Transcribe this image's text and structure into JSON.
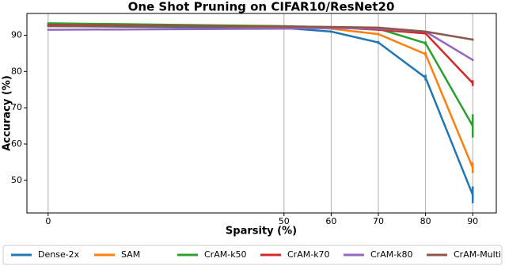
{
  "chart_data": {
    "type": "line",
    "title": "One Shot Pruning on CIFAR10/ResNet20",
    "xlabel": "Sparsity (%)",
    "ylabel": "Accuracy (%)",
    "x": [
      0,
      50,
      60,
      70,
      80,
      90
    ],
    "xlim": [
      -4.5,
      95
    ],
    "xticks": [
      0,
      50,
      60,
      70,
      80,
      90
    ],
    "ylim": [
      41,
      96
    ],
    "yticks": [
      50,
      60,
      70,
      80,
      90
    ],
    "grid": "x",
    "legend": "bottom",
    "series": [
      {
        "name": "Dense-2x",
        "color": "#1f77b4",
        "values": [
          92.5,
          92.0,
          91.0,
          88.0,
          78.3,
          46.0
        ],
        "errors": [
          0.2,
          0.2,
          0.3,
          0.4,
          0.8,
          2.3
        ]
      },
      {
        "name": "SAM",
        "color": "#ff7f0e",
        "values": [
          92.8,
          92.3,
          91.8,
          90.3,
          84.8,
          53.5
        ],
        "errors": [
          0.2,
          0.2,
          0.2,
          0.3,
          0.6,
          1.5
        ]
      },
      {
        "name": "CrAM-k50",
        "color": "#2ca02c",
        "values": [
          93.3,
          92.5,
          92.2,
          91.8,
          87.8,
          65.0
        ],
        "errors": [
          0.2,
          0.2,
          0.2,
          0.2,
          0.5,
          3.2
        ]
      },
      {
        "name": "CrAM-k70",
        "color": "#d62728",
        "values": [
          92.8,
          92.4,
          92.2,
          91.5,
          90.5,
          76.8
        ],
        "errors": [
          0.2,
          0.2,
          0.2,
          0.2,
          0.3,
          0.8
        ]
      },
      {
        "name": "CrAM-k80",
        "color": "#9467bd",
        "values": [
          91.5,
          91.8,
          92.0,
          91.8,
          91.0,
          83.2
        ],
        "errors": [
          0.2,
          0.2,
          0.2,
          0.2,
          0.2,
          0.3
        ]
      },
      {
        "name": "CrAM-Multi",
        "color": "#8c564b",
        "values": [
          92.5,
          92.4,
          92.3,
          92.1,
          91.0,
          88.8
        ],
        "errors": [
          0.2,
          0.2,
          0.2,
          0.2,
          0.2,
          0.3
        ]
      }
    ]
  }
}
